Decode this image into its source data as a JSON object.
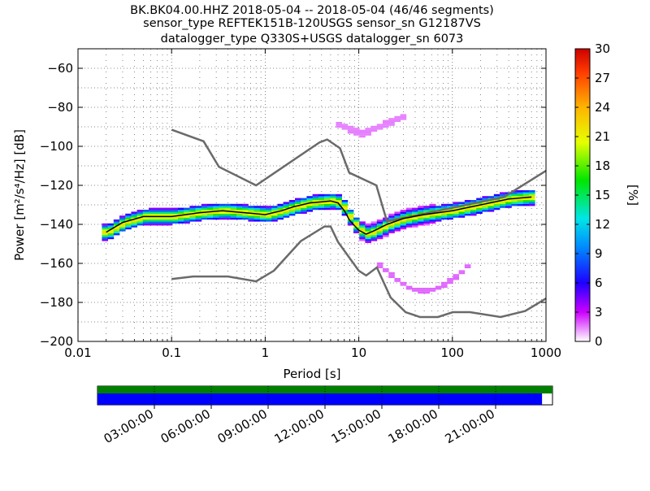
{
  "title": {
    "line1": "BK.BK04.00.HHZ   2018-05-04 -- 2018-05-04  (46/46 segments)",
    "line2": "sensor_type REFTEK151B-120USGS sensor_sn G12187VS",
    "line3": "datalogger_type Q330S+USGS datalogger_sn 6073"
  },
  "colorbar": {
    "label": "[%]",
    "ticks": [
      "0",
      "3",
      "6",
      "9",
      "12",
      "15",
      "18",
      "21",
      "24",
      "27",
      "30"
    ]
  },
  "timeline": {
    "ticks": [
      "03:00:00",
      "06:00:00",
      "09:00:00",
      "12:00:00",
      "15:00:00",
      "18:00:00",
      "21:00:00"
    ],
    "coverage_top_fraction": 1.0,
    "coverage_bottom_fraction": 0.977,
    "top_color": "#007f00",
    "bottom_color": "#0000ff"
  },
  "chart_data": {
    "type": "heatmap",
    "title": "BK.BK04.00.HHZ   2018-05-04 -- 2018-05-04  (46/46 segments)",
    "xlabel": "Period [s]",
    "ylabel": "Power [m²/s⁴/Hz] [dB]",
    "xscale": "log",
    "xlim": [
      0.01,
      1000
    ],
    "ylim": [
      -200,
      -50
    ],
    "xticks": [
      "0.01",
      "0.1",
      "1",
      "10",
      "100",
      "1000"
    ],
    "yticks": [
      "−200",
      "−180",
      "−160",
      "−140",
      "−120",
      "−100",
      "−80",
      "−60"
    ],
    "colorbar_range": [
      0,
      30
    ],
    "colormap": "pqlx",
    "grid": true,
    "noise_models": [
      {
        "x": [
          0.1,
          0.22,
          0.32,
          0.8,
          3.8,
          4.6,
          6.3,
          7.9,
          15.4,
          20,
          354.8,
          1000
        ],
        "y": [
          -91.5,
          -97.4,
          -110.5,
          -120,
          -98,
          -96.5,
          -101,
          -113.5,
          -120,
          -138.5,
          -126,
          -112.5
        ]
      },
      {
        "x": [
          0.1,
          0.17,
          0.4,
          0.8,
          1.24,
          2.4,
          4.3,
          5,
          6,
          10,
          12,
          15.6,
          21.9,
          31.6,
          45,
          70,
          101,
          154,
          328,
          600,
          1000
        ],
        "y": [
          -168,
          -166.7,
          -166.7,
          -169.2,
          -163.7,
          -148.6,
          -141.1,
          -141.1,
          -149,
          -163.8,
          -166.2,
          -162.1,
          -177.5,
          -185,
          -187.5,
          -187.5,
          -185,
          -185,
          -187.5,
          -184.4,
          -178
        ]
      }
    ],
    "mode_curve": {
      "x": [
        0.02,
        0.03,
        0.05,
        0.1,
        0.2,
        0.35,
        0.6,
        1,
        1.5,
        2,
        3,
        5,
        6,
        7,
        8,
        10,
        12,
        15,
        20,
        30,
        50,
        100,
        200,
        400,
        700
      ],
      "y": [
        -144,
        -139,
        -136,
        -136,
        -134,
        -133,
        -134,
        -135,
        -133,
        -131,
        -129,
        -128,
        -129,
        -133,
        -138,
        -143,
        -145,
        -143,
        -140,
        -137,
        -135,
        -133,
        -130,
        -127,
        -126
      ]
    }
  }
}
